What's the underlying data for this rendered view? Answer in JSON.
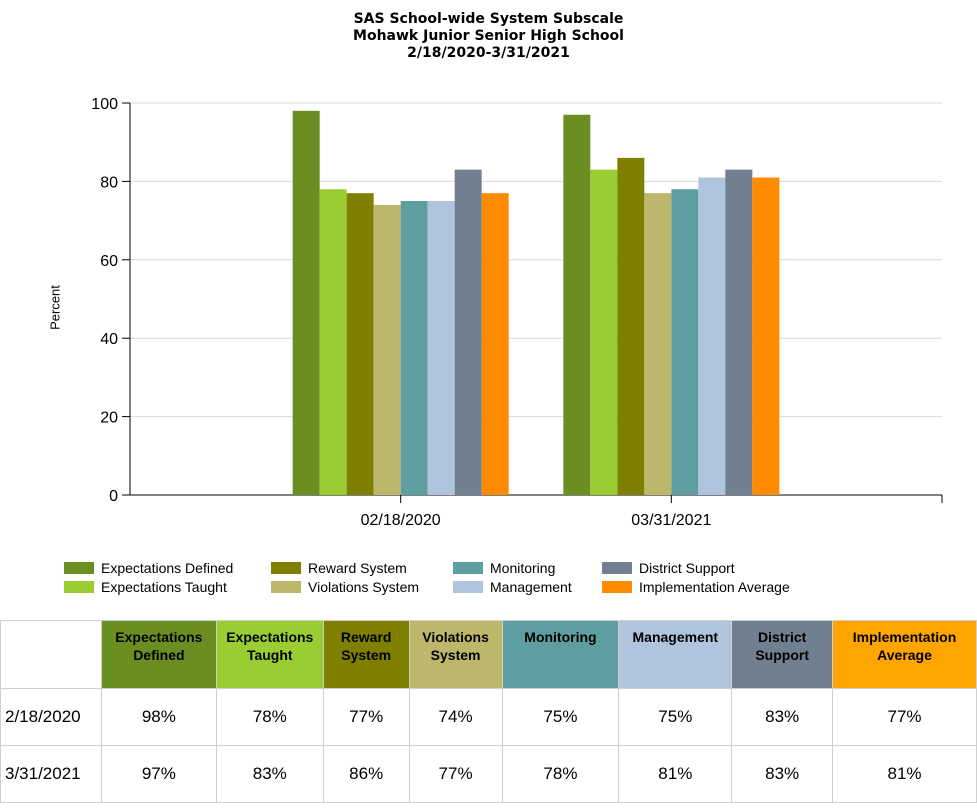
{
  "chart_data": {
    "type": "bar",
    "title": "SAS School-wide System Subscale",
    "subtitle": "Mohawk Junior Senior High School",
    "date_range": "2/18/2020-3/31/2021",
    "ylabel": "Percent",
    "xlabel": "",
    "ylim": [
      0,
      100
    ],
    "yticks": [
      0,
      20,
      40,
      60,
      80,
      100
    ],
    "grid": true,
    "legend_position": "bottom",
    "categories": [
      "02/18/2020",
      "03/31/2021"
    ],
    "series": [
      {
        "name": "Expectations Defined",
        "color": "#6b8e23",
        "values": [
          98,
          97
        ]
      },
      {
        "name": "Expectations Taught",
        "color": "#9acd32",
        "values": [
          78,
          83
        ]
      },
      {
        "name": "Reward System",
        "color": "#808000",
        "values": [
          77,
          86
        ]
      },
      {
        "name": "Violations System",
        "color": "#bdb76b",
        "values": [
          74,
          77
        ]
      },
      {
        "name": "Monitoring",
        "color": "#5f9ea0",
        "values": [
          75,
          78
        ]
      },
      {
        "name": "Management",
        "color": "#b0c4de",
        "values": [
          75,
          81
        ]
      },
      {
        "name": "District Support",
        "color": "#708090",
        "values": [
          83,
          83
        ]
      },
      {
        "name": "Implementation Average",
        "color": "#ff8c00",
        "values": [
          77,
          81
        ]
      }
    ]
  },
  "table": {
    "header_line1": [
      "Expectations",
      "Expectations",
      "Reward",
      "Violations",
      "Monitoring",
      "Management",
      "District",
      "Implementation"
    ],
    "header_line2": [
      "Defined",
      "Taught",
      "System",
      "System",
      "",
      "",
      "Support",
      "Average"
    ],
    "header_colors": [
      "#6b8e23",
      "#9acd32",
      "#808000",
      "#bdb76b",
      "#5f9ea0",
      "#b0c4de",
      "#708090",
      "#ffa500"
    ],
    "rows": [
      {
        "label": "2/18/2020",
        "cells": [
          "98%",
          "78%",
          "77%",
          "74%",
          "75%",
          "75%",
          "83%",
          "77%"
        ]
      },
      {
        "label": "3/31/2021",
        "cells": [
          "97%",
          "83%",
          "86%",
          "77%",
          "78%",
          "81%",
          "83%",
          "81%"
        ]
      }
    ]
  }
}
